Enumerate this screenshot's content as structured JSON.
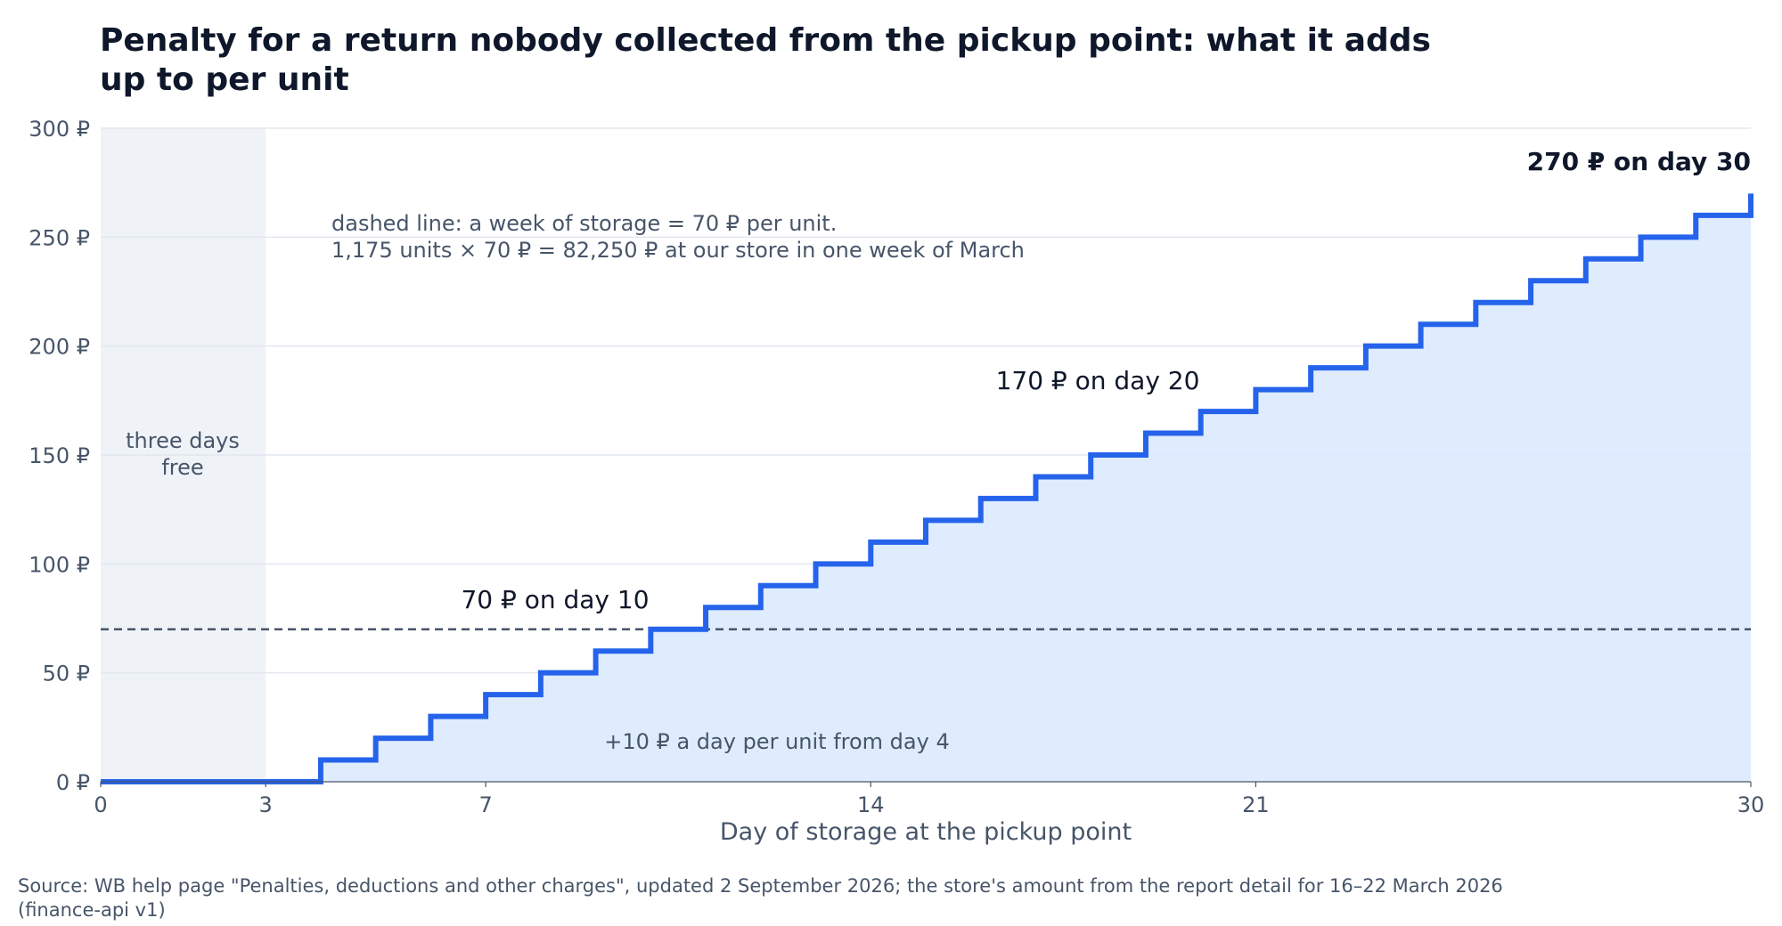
{
  "chart_data": {
    "type": "line",
    "step": true,
    "title": "Penalty for a return nobody collected from the pickup point: what it adds up to per unit",
    "xlabel": "Day of storage at the pickup point",
    "ylabel": "",
    "xlim": [
      0,
      30
    ],
    "ylim": [
      0,
      300
    ],
    "x_ticks": [
      "0",
      "3",
      "7",
      "14",
      "21",
      "30"
    ],
    "y_ticks": [
      "0 ₽",
      "50 ₽",
      "100 ₽",
      "150 ₽",
      "200 ₽",
      "250 ₽",
      "300 ₽"
    ],
    "grid": "horizontal",
    "series": [
      {
        "color": "#2563eb",
        "x": [
          0,
          1,
          2,
          3,
          4,
          5,
          6,
          7,
          8,
          9,
          10,
          11,
          12,
          13,
          14,
          15,
          16,
          17,
          18,
          19,
          20,
          21,
          22,
          23,
          24,
          25,
          26,
          27,
          28,
          29,
          30
        ],
        "y": [
          0,
          0,
          0,
          0,
          10,
          20,
          30,
          40,
          50,
          60,
          70,
          80,
          90,
          100,
          110,
          120,
          130,
          140,
          150,
          160,
          170,
          180,
          190,
          200,
          210,
          220,
          230,
          240,
          250,
          260,
          270
        ]
      }
    ],
    "reference_line": {
      "y": 70,
      "style": "dashed",
      "color": "#475569"
    },
    "shaded_region": {
      "x": [
        0,
        3
      ],
      "label": [
        "three days",
        "free"
      ]
    },
    "annotations": {
      "day10": "70 ₽ on day 10",
      "day20": "170 ₽ on day 20",
      "day30": "270 ₽ on day 30",
      "note_line1": "dashed line: a week of storage = 70 ₽ per unit.",
      "note_line2": "1,175 units × 70 ₽ = 82,250 ₽ at our store in one week of March",
      "rate": "+10 ₽ a day per unit from day 4"
    },
    "colors": {
      "line": "#2563eb",
      "fill": "#dbeafe",
      "shade": "#eff3f8",
      "text": "#0f172a",
      "muted": "#475569",
      "grid": "#e2e8f0"
    }
  },
  "source": "Source: WB help page \"Penalties, deductions and other charges\", updated 2 September 2026; the store's amount from the report detail for 16–22 March 2026 (finance-api v1)"
}
